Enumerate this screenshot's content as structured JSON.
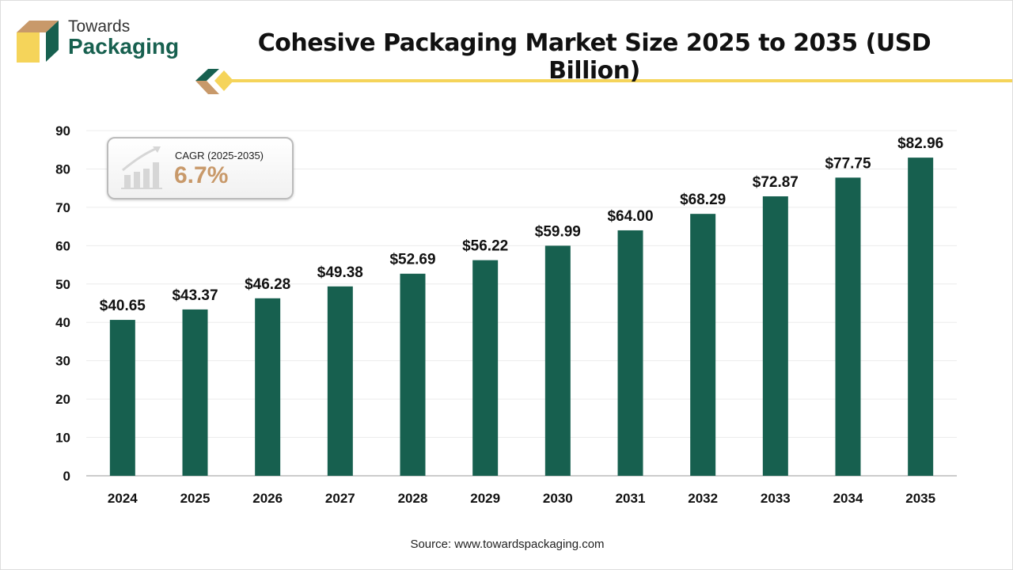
{
  "brand": {
    "line1": "Towards",
    "line2": "Packaging"
  },
  "title": "Cohesive Packaging Market Size 2025 to 2035 (USD Billion)",
  "source": "Source: www.towardspackaging.com",
  "cagr": {
    "label": "CAGR (2025-2035)",
    "value": "6.7%"
  },
  "colors": {
    "bar": "#17604f",
    "accent": "#f5d45a",
    "cagr": "#c8996a",
    "logo_tan": "#c8996a"
  },
  "chart_data": {
    "type": "bar",
    "title": "Cohesive Packaging Market Size 2025 to 2035 (USD Billion)",
    "categories": [
      "2024",
      "2025",
      "2026",
      "2027",
      "2028",
      "2029",
      "2030",
      "2031",
      "2032",
      "2033",
      "2034",
      "2035"
    ],
    "values": [
      40.65,
      43.37,
      46.28,
      49.38,
      52.69,
      56.22,
      59.99,
      64.0,
      68.29,
      72.87,
      77.75,
      82.96
    ],
    "data_labels": [
      "$40.65",
      "$43.37",
      "$46.28",
      "$49.38",
      "$52.69",
      "$56.22",
      "$59.99",
      "$64.00",
      "$68.29",
      "$72.87",
      "$77.75",
      "$82.96"
    ],
    "ylim": [
      0,
      90
    ],
    "yticks": [
      0,
      10,
      20,
      30,
      40,
      50,
      60,
      70,
      80,
      90
    ],
    "grid": true,
    "xlabel": "",
    "ylabel": ""
  }
}
